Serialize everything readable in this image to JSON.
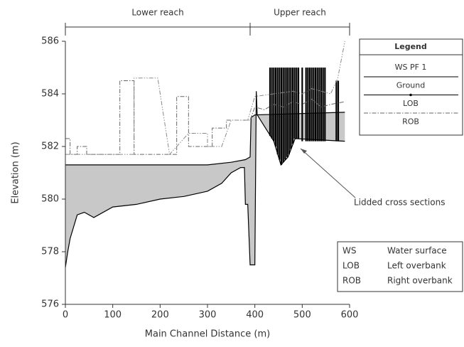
{
  "chart_data": {
    "type": "line",
    "y_label": "Elevation (m)",
    "x_label": "Main Channel Distance (m)",
    "xlim": [
      0,
      600
    ],
    "xticks": [
      0,
      100,
      200,
      300,
      400,
      500,
      600
    ],
    "ylim": [
      576,
      586
    ],
    "yticks": [
      576,
      578,
      580,
      582,
      584,
      586
    ],
    "legend_title": "Legend",
    "series": [
      {
        "name": "WS PF 1",
        "color": "#000000",
        "fill": "#c8c8c8",
        "x": [
          0,
          100,
          200,
          300,
          350,
          380,
          390,
          392,
          400,
          590
        ],
        "values": [
          581.3,
          581.3,
          581.3,
          581.3,
          581.4,
          581.5,
          581.6,
          583.1,
          583.2,
          583.3
        ]
      },
      {
        "name": "Ground",
        "color": "#000000",
        "x": [
          0,
          5,
          10,
          25,
          40,
          60,
          100,
          150,
          200,
          250,
          300,
          330,
          350,
          370,
          378,
          380,
          385,
          390,
          395,
          400,
          403,
          405,
          440,
          455,
          470,
          485,
          590
        ],
        "values": [
          577.4,
          578.0,
          578.5,
          579.4,
          579.5,
          579.3,
          579.7,
          579.8,
          580.0,
          580.1,
          580.3,
          580.6,
          581.0,
          581.2,
          581.2,
          579.8,
          579.8,
          577.5,
          577.5,
          577.5,
          584.1,
          583.2,
          582.2,
          581.3,
          581.6,
          582.3,
          582.2
        ]
      },
      {
        "name": "LOB",
        "color": "#666666",
        "dash": "6 2 1.5 2",
        "x": [
          0,
          10,
          10,
          25,
          25,
          45,
          45,
          115,
          115,
          145,
          145,
          235,
          235,
          260,
          260,
          310,
          310,
          340,
          340,
          390,
          400,
          420,
          440,
          460,
          480,
          500,
          520,
          540,
          560,
          590
        ],
        "values": [
          582.3,
          582.3,
          581.7,
          581.7,
          582.0,
          582.0,
          581.7,
          581.7,
          584.5,
          584.5,
          581.7,
          581.7,
          583.9,
          583.9,
          582.0,
          582.0,
          582.7,
          582.7,
          583.0,
          583.0,
          583.5,
          583.4,
          583.6,
          583.5,
          583.7,
          583.6,
          583.8,
          583.5,
          583.6,
          583.7
        ]
      },
      {
        "name": "ROB",
        "color": "#8a8a8a",
        "dash": "6 2 1.5 2 1.5 2",
        "x": [
          0,
          145,
          145,
          195,
          220,
          260,
          300,
          300,
          330,
          350,
          385,
          400,
          440,
          480,
          500,
          520,
          560,
          575,
          590
        ],
        "values": [
          581.7,
          581.7,
          584.6,
          584.6,
          581.7,
          582.5,
          582.5,
          582.0,
          582.0,
          583.0,
          583.0,
          583.9,
          584.0,
          584.1,
          584.0,
          584.2,
          584.0,
          584.6,
          586.0
        ]
      }
    ],
    "lidded_sections": {
      "color": "#000000",
      "x": [
        432,
        436,
        440,
        444,
        448,
        452,
        456,
        460,
        464,
        468,
        472,
        476,
        480,
        484,
        488,
        492,
        500,
        508,
        512,
        516,
        520,
        524,
        528,
        532,
        536,
        540,
        544,
        548,
        572,
        576
      ],
      "top": [
        585,
        585,
        585,
        585,
        585,
        585,
        585,
        585,
        585,
        585,
        585,
        585,
        585,
        585,
        585,
        585,
        585,
        585,
        585,
        585,
        585,
        585,
        585,
        585,
        585,
        585,
        585,
        585,
        584.5,
        584.5
      ],
      "bottom": [
        582.4,
        582.3,
        582.2,
        582.0,
        581.7,
        581.5,
        581.3,
        581.4,
        581.5,
        581.6,
        581.7,
        581.9,
        582.1,
        582.3,
        582.3,
        582.3,
        582.2,
        582.2,
        582.2,
        582.2,
        582.2,
        582.2,
        582.2,
        582.2,
        582.2,
        582.2,
        582.2,
        582.2,
        582.2,
        582.2
      ]
    },
    "annotation": "Lidded cross sections",
    "reaches": [
      {
        "label": "Lower reach",
        "start": 0,
        "end": 390
      },
      {
        "label": "Upper reach",
        "start": 390,
        "end": 600
      }
    ],
    "abbreviations": [
      [
        "WS",
        "Water surface"
      ],
      [
        "LOB",
        "Left overbank"
      ],
      [
        "ROB",
        "Right overbank"
      ]
    ]
  }
}
